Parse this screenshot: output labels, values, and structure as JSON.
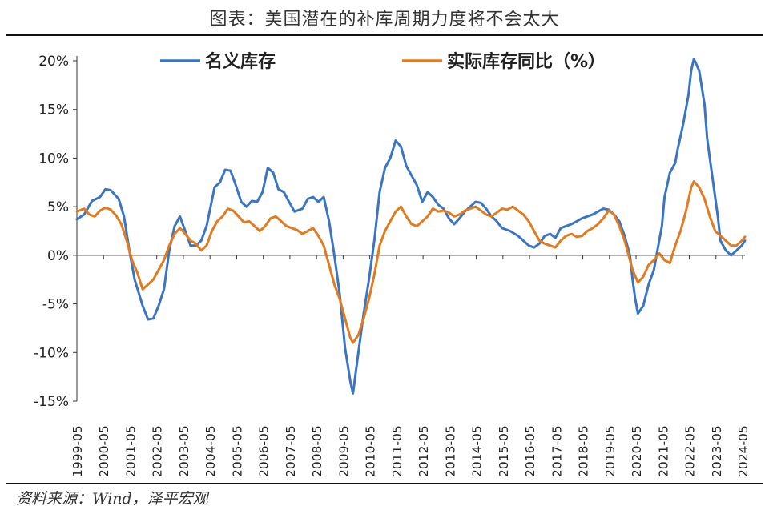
{
  "header": {
    "title": "图表：美国潜在的补库周期力度将不会太大"
  },
  "footer": {
    "source": "资料来源：Wind，泽平宏观"
  },
  "chart_data": {
    "type": "line",
    "title": "图表：美国潜在的补库周期力度将不会太大",
    "xlabel": "",
    "ylabel": "",
    "ylim": [
      -15,
      20
    ],
    "ytick_values": [
      -15,
      -10,
      -5,
      0,
      5,
      10,
      15,
      20
    ],
    "ytick_labels": [
      "-15%",
      "-10%",
      "-5%",
      "0%",
      "5%",
      "10%",
      "15%",
      "20%"
    ],
    "x_start": 1999.33,
    "x_end": 2024.42,
    "xtick_values": [
      1999.33,
      2000.33,
      2001.33,
      2002.33,
      2003.33,
      2004.33,
      2005.33,
      2006.33,
      2007.33,
      2008.33,
      2009.33,
      2010.33,
      2011.33,
      2012.33,
      2013.33,
      2014.33,
      2015.33,
      2016.33,
      2017.33,
      2018.33,
      2019.33,
      2020.33,
      2021.33,
      2022.33,
      2023.33,
      2024.33
    ],
    "xtick_labels": [
      "1999-05",
      "2000-05",
      "2001-05",
      "2002-05",
      "2003-05",
      "2004-05",
      "2005-05",
      "2006-05",
      "2007-05",
      "2008-05",
      "2009-05",
      "2010-05",
      "2011-05",
      "2012-05",
      "2013-05",
      "2014-05",
      "2015-05",
      "2016-05",
      "2017-05",
      "2018-05",
      "2019-05",
      "2020-05",
      "2021-05",
      "2022-05",
      "2023-05",
      "2024-05"
    ],
    "legend": {
      "placement": "top"
    },
    "colors": {
      "nominal": "#3a75c4",
      "real": "#e27a1e"
    },
    "series": [
      {
        "name": "名义库存",
        "key": "nominal",
        "points": [
          [
            1999.33,
            3.7
          ],
          [
            1999.6,
            4.2
          ],
          [
            1999.9,
            5.6
          ],
          [
            2000.2,
            6.0
          ],
          [
            2000.4,
            6.8
          ],
          [
            2000.6,
            6.7
          ],
          [
            2000.9,
            5.8
          ],
          [
            2001.1,
            4.0
          ],
          [
            2001.3,
            0.5
          ],
          [
            2001.5,
            -2.5
          ],
          [
            2001.8,
            -5.2
          ],
          [
            2002.0,
            -6.6
          ],
          [
            2002.2,
            -6.5
          ],
          [
            2002.4,
            -5.2
          ],
          [
            2002.6,
            -3.5
          ],
          [
            2002.8,
            0.5
          ],
          [
            2003.0,
            3.0
          ],
          [
            2003.2,
            4.0
          ],
          [
            2003.4,
            2.5
          ],
          [
            2003.6,
            1.0
          ],
          [
            2003.8,
            1.0
          ],
          [
            2004.0,
            1.5
          ],
          [
            2004.2,
            3.0
          ],
          [
            2004.5,
            7.0
          ],
          [
            2004.7,
            7.5
          ],
          [
            2004.9,
            8.8
          ],
          [
            2005.1,
            8.7
          ],
          [
            2005.3,
            7.2
          ],
          [
            2005.5,
            5.5
          ],
          [
            2005.7,
            5.0
          ],
          [
            2005.9,
            5.6
          ],
          [
            2006.1,
            5.5
          ],
          [
            2006.3,
            6.5
          ],
          [
            2006.5,
            9.0
          ],
          [
            2006.7,
            8.5
          ],
          [
            2006.9,
            6.8
          ],
          [
            2007.1,
            6.5
          ],
          [
            2007.3,
            5.5
          ],
          [
            2007.5,
            4.5
          ],
          [
            2007.8,
            4.8
          ],
          [
            2008.0,
            5.8
          ],
          [
            2008.2,
            6.0
          ],
          [
            2008.4,
            5.5
          ],
          [
            2008.6,
            6.0
          ],
          [
            2008.8,
            3.5
          ],
          [
            2009.0,
            0.0
          ],
          [
            2009.2,
            -4.0
          ],
          [
            2009.4,
            -9.5
          ],
          [
            2009.6,
            -13.0
          ],
          [
            2009.7,
            -14.2
          ],
          [
            2009.9,
            -10.0
          ],
          [
            2010.1,
            -6.0
          ],
          [
            2010.3,
            -2.5
          ],
          [
            2010.5,
            1.5
          ],
          [
            2010.7,
            6.5
          ],
          [
            2010.9,
            9.0
          ],
          [
            2011.1,
            10.0
          ],
          [
            2011.3,
            11.8
          ],
          [
            2011.5,
            11.2
          ],
          [
            2011.7,
            9.2
          ],
          [
            2011.9,
            8.2
          ],
          [
            2012.1,
            7.2
          ],
          [
            2012.3,
            5.5
          ],
          [
            2012.5,
            6.5
          ],
          [
            2012.7,
            6.0
          ],
          [
            2012.9,
            5.2
          ],
          [
            2013.1,
            4.8
          ],
          [
            2013.3,
            3.8
          ],
          [
            2013.5,
            3.2
          ],
          [
            2013.7,
            3.8
          ],
          [
            2013.9,
            4.5
          ],
          [
            2014.1,
            5.0
          ],
          [
            2014.3,
            5.5
          ],
          [
            2014.5,
            5.4
          ],
          [
            2014.7,
            4.8
          ],
          [
            2014.9,
            4.0
          ],
          [
            2015.1,
            3.5
          ],
          [
            2015.3,
            2.8
          ],
          [
            2015.6,
            2.5
          ],
          [
            2015.9,
            2.0
          ],
          [
            2016.1,
            1.5
          ],
          [
            2016.3,
            1.0
          ],
          [
            2016.5,
            0.8
          ],
          [
            2016.7,
            1.2
          ],
          [
            2016.9,
            2.0
          ],
          [
            2017.1,
            2.2
          ],
          [
            2017.3,
            1.8
          ],
          [
            2017.5,
            2.8
          ],
          [
            2017.7,
            3.0
          ],
          [
            2017.9,
            3.2
          ],
          [
            2018.1,
            3.5
          ],
          [
            2018.3,
            3.8
          ],
          [
            2018.5,
            4.0
          ],
          [
            2018.7,
            4.2
          ],
          [
            2018.9,
            4.5
          ],
          [
            2019.1,
            4.8
          ],
          [
            2019.3,
            4.7
          ],
          [
            2019.5,
            4.2
          ],
          [
            2019.7,
            3.5
          ],
          [
            2019.9,
            2.0
          ],
          [
            2020.1,
            0.0
          ],
          [
            2020.2,
            -2.5
          ],
          [
            2020.3,
            -4.5
          ],
          [
            2020.4,
            -6.0
          ],
          [
            2020.6,
            -5.2
          ],
          [
            2020.8,
            -3.0
          ],
          [
            2021.0,
            -1.5
          ],
          [
            2021.1,
            0.0
          ],
          [
            2021.3,
            3.0
          ],
          [
            2021.4,
            6.0
          ],
          [
            2021.6,
            8.5
          ],
          [
            2021.8,
            9.5
          ],
          [
            2021.9,
            11.0
          ],
          [
            2022.1,
            13.5
          ],
          [
            2022.3,
            16.5
          ],
          [
            2022.4,
            19.0
          ],
          [
            2022.5,
            20.2
          ],
          [
            2022.7,
            19.0
          ],
          [
            2022.9,
            15.5
          ],
          [
            2023.0,
            12.0
          ],
          [
            2023.2,
            8.0
          ],
          [
            2023.4,
            4.0
          ],
          [
            2023.5,
            1.5
          ],
          [
            2023.7,
            0.5
          ],
          [
            2023.9,
            0.0
          ],
          [
            2024.1,
            0.5
          ],
          [
            2024.3,
            1.0
          ],
          [
            2024.42,
            1.5
          ]
        ]
      },
      {
        "name": "实际库存同比（%）",
        "key": "real",
        "points": [
          [
            1999.33,
            4.5
          ],
          [
            1999.6,
            4.8
          ],
          [
            1999.8,
            4.2
          ],
          [
            2000.0,
            4.0
          ],
          [
            2000.2,
            4.6
          ],
          [
            2000.4,
            4.9
          ],
          [
            2000.6,
            4.7
          ],
          [
            2000.8,
            4.1
          ],
          [
            2001.0,
            3.2
          ],
          [
            2001.2,
            1.5
          ],
          [
            2001.4,
            -0.5
          ],
          [
            2001.6,
            -1.8
          ],
          [
            2001.8,
            -3.5
          ],
          [
            2002.0,
            -3.0
          ],
          [
            2002.2,
            -2.5
          ],
          [
            2002.4,
            -1.5
          ],
          [
            2002.6,
            -0.5
          ],
          [
            2002.8,
            1.0
          ],
          [
            2003.0,
            2.2
          ],
          [
            2003.2,
            2.8
          ],
          [
            2003.4,
            2.2
          ],
          [
            2003.6,
            1.5
          ],
          [
            2003.8,
            1.2
          ],
          [
            2004.0,
            0.5
          ],
          [
            2004.2,
            1.0
          ],
          [
            2004.4,
            2.5
          ],
          [
            2004.6,
            3.5
          ],
          [
            2004.8,
            4.0
          ],
          [
            2005.0,
            4.8
          ],
          [
            2005.2,
            4.6
          ],
          [
            2005.4,
            4.0
          ],
          [
            2005.6,
            3.4
          ],
          [
            2005.8,
            3.5
          ],
          [
            2006.0,
            3.0
          ],
          [
            2006.2,
            2.5
          ],
          [
            2006.4,
            3.0
          ],
          [
            2006.6,
            3.8
          ],
          [
            2006.8,
            4.0
          ],
          [
            2007.0,
            3.5
          ],
          [
            2007.2,
            3.0
          ],
          [
            2007.4,
            2.8
          ],
          [
            2007.6,
            2.6
          ],
          [
            2007.8,
            2.2
          ],
          [
            2008.0,
            2.5
          ],
          [
            2008.2,
            2.8
          ],
          [
            2008.4,
            2.0
          ],
          [
            2008.6,
            1.0
          ],
          [
            2008.8,
            -1.0
          ],
          [
            2009.0,
            -3.0
          ],
          [
            2009.2,
            -4.5
          ],
          [
            2009.4,
            -6.5
          ],
          [
            2009.6,
            -8.5
          ],
          [
            2009.7,
            -9.0
          ],
          [
            2009.9,
            -8.2
          ],
          [
            2010.1,
            -6.5
          ],
          [
            2010.3,
            -4.5
          ],
          [
            2010.5,
            -2.0
          ],
          [
            2010.7,
            1.0
          ],
          [
            2010.9,
            2.5
          ],
          [
            2011.1,
            3.5
          ],
          [
            2011.3,
            4.5
          ],
          [
            2011.5,
            5.0
          ],
          [
            2011.7,
            4.0
          ],
          [
            2011.9,
            3.2
          ],
          [
            2012.1,
            3.0
          ],
          [
            2012.3,
            3.5
          ],
          [
            2012.5,
            4.0
          ],
          [
            2012.7,
            4.8
          ],
          [
            2012.9,
            4.5
          ],
          [
            2013.1,
            4.6
          ],
          [
            2013.3,
            4.4
          ],
          [
            2013.5,
            4.0
          ],
          [
            2013.7,
            4.2
          ],
          [
            2013.9,
            4.6
          ],
          [
            2014.1,
            4.8
          ],
          [
            2014.3,
            5.0
          ],
          [
            2014.5,
            4.6
          ],
          [
            2014.7,
            4.2
          ],
          [
            2014.9,
            4.0
          ],
          [
            2015.1,
            4.4
          ],
          [
            2015.3,
            4.8
          ],
          [
            2015.5,
            4.7
          ],
          [
            2015.7,
            5.0
          ],
          [
            2015.9,
            4.6
          ],
          [
            2016.1,
            4.2
          ],
          [
            2016.3,
            3.5
          ],
          [
            2016.5,
            2.5
          ],
          [
            2016.7,
            1.5
          ],
          [
            2016.9,
            1.2
          ],
          [
            2017.1,
            1.0
          ],
          [
            2017.3,
            0.8
          ],
          [
            2017.5,
            1.5
          ],
          [
            2017.7,
            2.0
          ],
          [
            2017.9,
            2.2
          ],
          [
            2018.1,
            1.9
          ],
          [
            2018.3,
            2.0
          ],
          [
            2018.5,
            2.5
          ],
          [
            2018.7,
            2.8
          ],
          [
            2018.9,
            3.2
          ],
          [
            2019.1,
            3.8
          ],
          [
            2019.3,
            4.6
          ],
          [
            2019.5,
            4.2
          ],
          [
            2019.7,
            3.0
          ],
          [
            2019.9,
            1.5
          ],
          [
            2020.0,
            0.5
          ],
          [
            2020.2,
            -1.5
          ],
          [
            2020.4,
            -2.8
          ],
          [
            2020.6,
            -2.2
          ],
          [
            2020.8,
            -1.0
          ],
          [
            2021.0,
            -0.5
          ],
          [
            2021.2,
            0.2
          ],
          [
            2021.4,
            -0.5
          ],
          [
            2021.6,
            -0.8
          ],
          [
            2021.8,
            1.0
          ],
          [
            2022.0,
            2.5
          ],
          [
            2022.2,
            4.5
          ],
          [
            2022.4,
            7.0
          ],
          [
            2022.5,
            7.6
          ],
          [
            2022.7,
            7.0
          ],
          [
            2022.9,
            5.8
          ],
          [
            2023.1,
            4.0
          ],
          [
            2023.3,
            2.5
          ],
          [
            2023.5,
            2.0
          ],
          [
            2023.7,
            1.5
          ],
          [
            2023.9,
            1.0
          ],
          [
            2024.1,
            1.0
          ],
          [
            2024.3,
            1.5
          ],
          [
            2024.42,
            1.9
          ]
        ]
      }
    ]
  }
}
